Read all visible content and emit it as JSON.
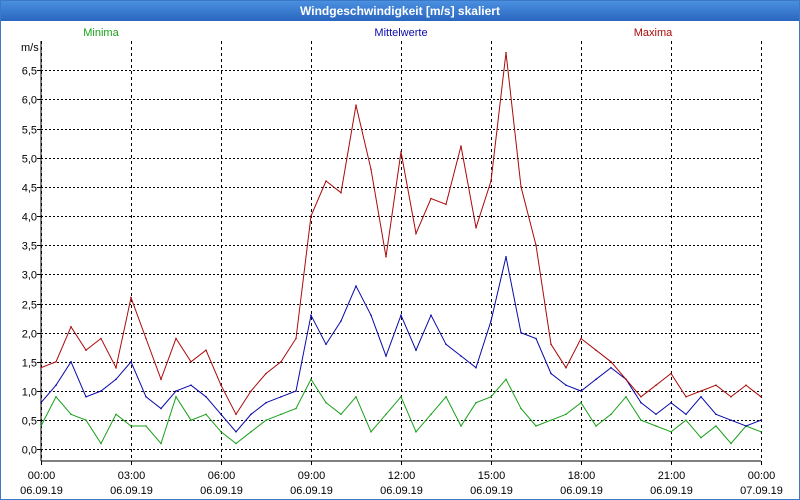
{
  "window": {
    "title": "Windgeschwindigkeit [m/s] skaliert"
  },
  "colors": {
    "minima": "#1aa01a",
    "mittelwerte": "#0a0aa8",
    "maxima": "#aa0a0a",
    "grid": "#000000",
    "title_bg": "#2f6fcc"
  },
  "chart_data": {
    "type": "line",
    "title": "Windgeschwindigkeit [m/s] skaliert",
    "ylabel": "m/s",
    "xlabel": "",
    "ylim": [
      -0.2,
      7.0
    ],
    "xlim": [
      0,
      24
    ],
    "y_ticks": [
      {
        "value": 0.0,
        "label": "0,0"
      },
      {
        "value": 0.5,
        "label": "0,5"
      },
      {
        "value": 1.0,
        "label": "1,0"
      },
      {
        "value": 1.5,
        "label": "1,5"
      },
      {
        "value": 2.0,
        "label": "2,0"
      },
      {
        "value": 2.5,
        "label": "2,5"
      },
      {
        "value": 3.0,
        "label": "3,0"
      },
      {
        "value": 3.5,
        "label": "3,5"
      },
      {
        "value": 4.0,
        "label": "4,0"
      },
      {
        "value": 4.5,
        "label": "4,5"
      },
      {
        "value": 5.0,
        "label": "5,0"
      },
      {
        "value": 5.5,
        "label": "5,5"
      },
      {
        "value": 6.0,
        "label": "6,0"
      },
      {
        "value": 6.5,
        "label": "6,5"
      }
    ],
    "x_ticks": [
      {
        "value": 0,
        "time": "00:00",
        "date": "06.09.19"
      },
      {
        "value": 3,
        "time": "03:00",
        "date": "06.09.19"
      },
      {
        "value": 6,
        "time": "06:00",
        "date": "06.09.19"
      },
      {
        "value": 9,
        "time": "09:00",
        "date": "06.09.19"
      },
      {
        "value": 12,
        "time": "12:00",
        "date": "06.09.19"
      },
      {
        "value": 15,
        "time": "15:00",
        "date": "06.09.19"
      },
      {
        "value": 18,
        "time": "18:00",
        "date": "06.09.19"
      },
      {
        "value": 21,
        "time": "21:00",
        "date": "06.09.19"
      },
      {
        "value": 24,
        "time": "00:00",
        "date": "07.09.19"
      }
    ],
    "grid": true,
    "legend_position": "top",
    "series": [
      {
        "name": "Minima",
        "key": "minima",
        "hours": [
          0,
          0.5,
          1,
          1.5,
          2,
          2.5,
          3,
          3.5,
          4,
          4.5,
          5,
          5.5,
          6,
          6.5,
          7,
          7.5,
          8,
          8.5,
          9,
          9.5,
          10,
          10.5,
          11,
          11.5,
          12,
          12.5,
          13,
          13.5,
          14,
          14.5,
          15,
          15.5,
          16,
          16.5,
          17,
          17.5,
          18,
          18.5,
          19,
          19.5,
          20,
          20.5,
          21,
          21.5,
          22,
          22.5,
          23,
          23.5,
          24
        ],
        "values": [
          0.4,
          0.9,
          0.6,
          0.5,
          0.1,
          0.6,
          0.4,
          0.4,
          0.1,
          0.9,
          0.5,
          0.6,
          0.3,
          0.1,
          0.3,
          0.5,
          0.6,
          0.7,
          1.2,
          0.8,
          0.6,
          0.9,
          0.3,
          0.6,
          0.9,
          0.3,
          0.6,
          0.9,
          0.4,
          0.8,
          0.9,
          1.2,
          0.7,
          0.4,
          0.5,
          0.6,
          0.8,
          0.4,
          0.6,
          0.9,
          0.5,
          0.4,
          0.3,
          0.5,
          0.2,
          0.4,
          0.1,
          0.4,
          0.3
        ]
      },
      {
        "name": "Mittelwerte",
        "key": "mittelwerte",
        "hours": [
          0,
          0.5,
          1,
          1.5,
          2,
          2.5,
          3,
          3.5,
          4,
          4.5,
          5,
          5.5,
          6,
          6.5,
          7,
          7.5,
          8,
          8.5,
          9,
          9.5,
          10,
          10.5,
          11,
          11.5,
          12,
          12.5,
          13,
          13.5,
          14,
          14.5,
          15,
          15.5,
          16,
          16.5,
          17,
          17.5,
          18,
          18.5,
          19,
          19.5,
          20,
          20.5,
          21,
          21.5,
          22,
          22.5,
          23,
          23.5,
          24
        ],
        "values": [
          0.8,
          1.1,
          1.5,
          0.9,
          1.0,
          1.2,
          1.5,
          0.9,
          0.7,
          1.0,
          1.1,
          0.9,
          0.6,
          0.3,
          0.6,
          0.8,
          0.9,
          1.0,
          2.3,
          1.8,
          2.2,
          2.8,
          2.3,
          1.6,
          2.3,
          1.7,
          2.3,
          1.8,
          1.6,
          1.4,
          2.2,
          3.3,
          2.0,
          1.9,
          1.3,
          1.1,
          1.0,
          1.2,
          1.4,
          1.2,
          0.8,
          0.6,
          0.8,
          0.6,
          0.9,
          0.6,
          0.5,
          0.4,
          0.5
        ]
      },
      {
        "name": "Maxima",
        "key": "maxima",
        "hours": [
          0,
          0.5,
          1,
          1.5,
          2,
          2.5,
          3,
          3.5,
          4,
          4.5,
          5,
          5.5,
          6,
          6.5,
          7,
          7.5,
          8,
          8.5,
          9,
          9.5,
          10,
          10.5,
          11,
          11.5,
          12,
          12.5,
          13,
          13.5,
          14,
          14.5,
          15,
          15.5,
          16,
          16.5,
          17,
          17.5,
          18,
          18.5,
          19,
          19.5,
          20,
          20.5,
          21,
          21.5,
          22,
          22.5,
          23,
          23.5,
          24
        ],
        "values": [
          1.4,
          1.5,
          2.1,
          1.7,
          1.9,
          1.4,
          2.6,
          1.9,
          1.2,
          1.9,
          1.5,
          1.7,
          1.1,
          0.6,
          1.0,
          1.3,
          1.5,
          1.9,
          4.0,
          4.6,
          4.4,
          5.9,
          4.8,
          3.3,
          5.1,
          3.7,
          4.3,
          4.2,
          5.2,
          3.8,
          4.6,
          6.8,
          4.5,
          3.5,
          1.8,
          1.4,
          1.9,
          1.7,
          1.5,
          1.2,
          0.9,
          1.1,
          1.3,
          0.9,
          1.0,
          1.1,
          0.9,
          1.1,
          0.9
        ]
      }
    ]
  }
}
